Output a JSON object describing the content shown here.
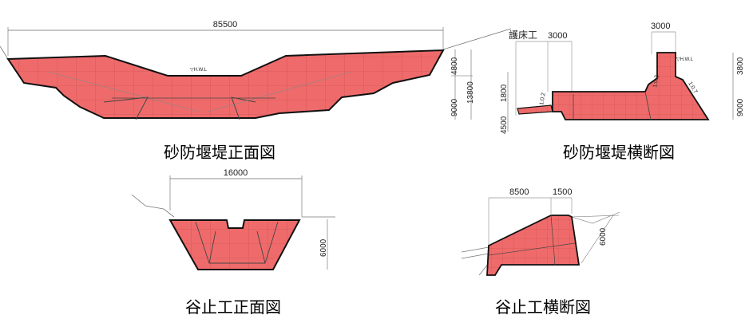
{
  "colors": {
    "fill": "#ef6b6b",
    "grid": "#c84a4a",
    "outline": "#111111",
    "line": "#666666"
  },
  "front_dam": {
    "caption": "砂防堰堤正面図",
    "width_label": "85500",
    "dims": [
      "4800",
      "9000",
      "13800"
    ],
    "hwl": "▽H.W.L"
  },
  "cross_dam": {
    "caption": "砂防堰堤横断図",
    "apron_label": "護床工",
    "apron_width": "3000",
    "crest_width": "3000",
    "dims_left": [
      "1800",
      "4500"
    ],
    "dims_right": [
      "3800",
      "9000"
    ],
    "slope_up": "1:0.2",
    "slope_up2": "1:0.2",
    "slope_down": "1:0.7",
    "hwl": "▽H.W.L"
  },
  "front_groyne": {
    "caption": "谷止工正面図",
    "width_label": "16000",
    "height_label": "6000"
  },
  "cross_groyne": {
    "caption": "谷止工横断図",
    "width_a": "8500",
    "width_b": "1500",
    "height_label": "6000"
  }
}
